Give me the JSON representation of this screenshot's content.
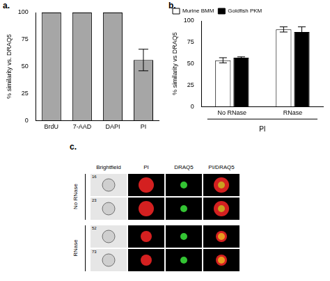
{
  "chart_data": [
    {
      "panel_label": "a.",
      "type": "bar",
      "categories": [
        "BrdU",
        "7-AAD",
        "DAPI",
        "PI"
      ],
      "values": [
        100,
        100,
        100,
        56
      ],
      "errors": [
        null,
        null,
        null,
        10
      ],
      "color": "#a6a6a6",
      "y_label": "% similarity vs. DRAQ5",
      "ylim": [
        0,
        100
      ],
      "yticks": [
        0,
        25,
        50,
        75,
        100
      ],
      "grid": false
    },
    {
      "panel_label": "b.",
      "type": "bar",
      "categories": [
        "No RNase",
        "RNase"
      ],
      "x_label": "PI",
      "series": [
        {
          "name": "Murine BMM",
          "color": "#ffffff",
          "values": [
            54,
            90
          ],
          "errors": [
            3,
            3
          ]
        },
        {
          "name": "Goldfish PKM",
          "color": "#000000",
          "values": [
            57,
            87
          ],
          "errors": [
            1,
            6
          ]
        }
      ],
      "y_label": "% similarity vs DRAQ5",
      "ylim": [
        0,
        100
      ],
      "yticks": [
        0,
        25,
        50,
        75,
        100
      ],
      "grid": false,
      "legend": "top"
    }
  ],
  "panel_c": {
    "panel_label": "c.",
    "columns": [
      "Brightfield",
      "PI",
      "DRAQ5",
      "PI/DRAQ5"
    ],
    "groups": [
      {
        "label": "No RNase",
        "cell_ids": [
          "16",
          "23"
        ]
      },
      {
        "label": "RNase",
        "cell_ids": [
          "52",
          "73"
        ]
      }
    ]
  }
}
